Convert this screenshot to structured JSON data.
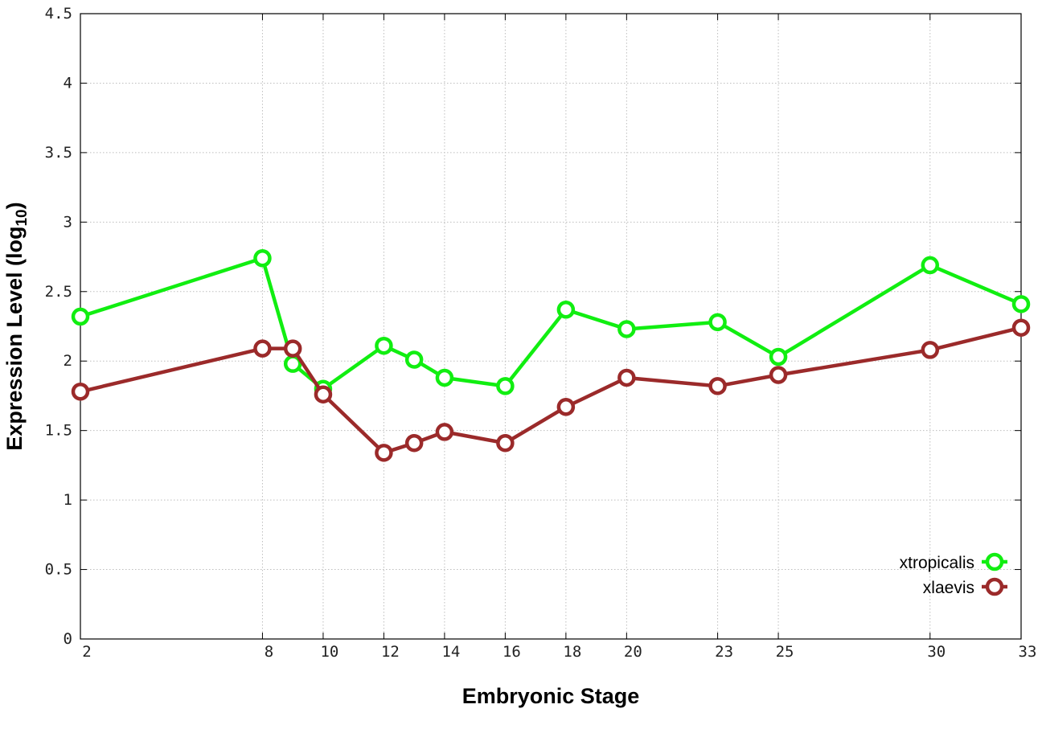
{
  "chart_data": {
    "type": "line",
    "title": "",
    "xlabel": "Embryonic Stage",
    "ylabel": "Expression Level (log",
    "ylabel_subscript": "10",
    "ylabel_close": ")",
    "xlim": [
      2,
      33
    ],
    "ylim": [
      0,
      4.5
    ],
    "grid": true,
    "legend_position": "bottom-right",
    "x": [
      2,
      8,
      9,
      10,
      12,
      13,
      14,
      16,
      18,
      20,
      23,
      25,
      30,
      33
    ],
    "x_tick_labels": [
      "2",
      "8",
      "10",
      "12",
      "14",
      "16",
      "18",
      "20",
      "23",
      "25",
      "30",
      "33"
    ],
    "y_tick_labels": [
      "0",
      "0.5",
      "1",
      "1.5",
      "2",
      "2.5",
      "3",
      "3.5",
      "4",
      "4.5"
    ],
    "series": [
      {
        "name": "xtropicalis",
        "color": "#11ee11",
        "values": [
          2.32,
          2.74,
          1.98,
          1.8,
          2.11,
          2.01,
          1.88,
          1.82,
          2.37,
          2.23,
          2.28,
          2.03,
          2.69,
          2.41
        ]
      },
      {
        "name": "xlaevis",
        "color": "#9b2a2a",
        "values": [
          1.78,
          2.09,
          2.09,
          1.76,
          1.34,
          1.41,
          1.49,
          1.41,
          1.67,
          1.88,
          1.82,
          1.9,
          2.08,
          2.24
        ]
      }
    ]
  }
}
